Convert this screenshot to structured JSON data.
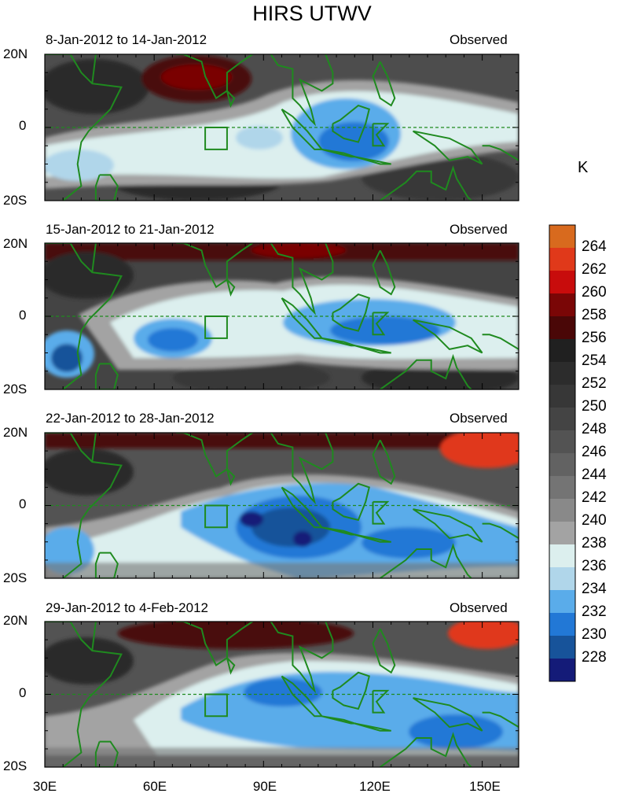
{
  "title": "HIRS UTWV",
  "unit": "K",
  "panels": [
    {
      "period": "8-Jan-2012 to 14-Jan-2012",
      "label_right": "Observed"
    },
    {
      "period": "15-Jan-2012 to 21-Jan-2012",
      "label_right": "Observed"
    },
    {
      "period": "22-Jan-2012 to 28-Jan-2012",
      "label_right": "Observed"
    },
    {
      "period": "29-Jan-2012 to 4-Feb-2012",
      "label_right": "Observed"
    }
  ],
  "lat_ticks": [
    "20N",
    "0",
    "20S"
  ],
  "lon_ticks": [
    "30E",
    "60E",
    "90E",
    "120E",
    "150E"
  ],
  "colorbar": {
    "labels": [
      "264",
      "262",
      "260",
      "258",
      "256",
      "254",
      "252",
      "250",
      "248",
      "246",
      "244",
      "242",
      "240",
      "238",
      "236",
      "234",
      "232",
      "230",
      "228"
    ],
    "colors": [
      "#d86a1e",
      "#e0391a",
      "#c80c0c",
      "#7a0606",
      "#4a0707",
      "#202020",
      "#2c2c2c",
      "#373737",
      "#444444",
      "#535353",
      "#626262",
      "#747474",
      "#898989",
      "#a3a3a3",
      "#dcefee",
      "#b0d6ea",
      "#5aacea",
      "#2278d6",
      "#17539a",
      "#141b78"
    ]
  },
  "map_data": {
    "lon_range": [
      30,
      160
    ],
    "lat_range": [
      -20,
      20
    ],
    "box": {
      "lon": [
        74,
        80
      ],
      "lat": [
        -6,
        0
      ]
    }
  }
}
